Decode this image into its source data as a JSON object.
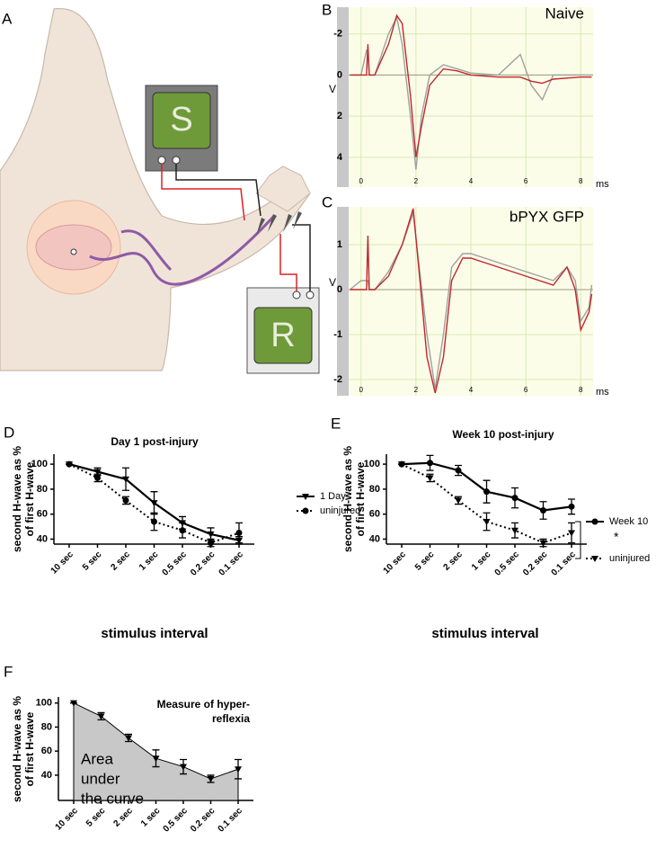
{
  "figure": {
    "panel_label": "A",
    "illustration": {
      "stimulator": "S",
      "recorder": "R"
    }
  },
  "chart_data": [
    {
      "type": "trace",
      "panel_label": "B",
      "title": "Naive",
      "ylabel": "V",
      "xlabel": "ms",
      "xlim": [
        -0.45,
        8.45
      ],
      "ylim": [
        5.45,
        -3.3
      ],
      "xticks": [
        0,
        2,
        4,
        6,
        8
      ],
      "yticks": [
        -2,
        0,
        2,
        4
      ],
      "grid": true,
      "series": [
        {
          "color": "#a0a0a0",
          "x": [
            -0.4,
            0,
            0.2,
            0.25,
            0.3,
            0.5,
            1,
            1.3,
            1.5,
            1.8,
            2,
            2.2,
            2.5,
            3,
            3.5,
            4,
            5,
            5.8,
            6.2,
            6.6,
            7,
            8,
            8.4
          ],
          "values": [
            0,
            0,
            -1.2,
            -1.2,
            0,
            0,
            -2,
            -2.8,
            -1.5,
            2,
            4.6,
            2,
            0,
            -0.5,
            -0.3,
            -0.1,
            0,
            -1,
            0.5,
            1.2,
            0,
            0,
            0
          ]
        },
        {
          "color": "#c0282d",
          "x": [
            -0.4,
            0,
            0.2,
            0.25,
            0.3,
            0.5,
            1,
            1.3,
            1.5,
            1.8,
            2,
            2.2,
            2.5,
            3,
            3.5,
            4,
            5,
            5.8,
            6.2,
            6.6,
            7,
            8,
            8.4
          ],
          "values": [
            0,
            0,
            0,
            -1.5,
            0,
            0,
            -1.5,
            -2.9,
            -2.5,
            1,
            4,
            2.5,
            0.5,
            -0.3,
            -0.2,
            0,
            0.1,
            0.1,
            0.3,
            0.4,
            0.2,
            0.1,
            0.1
          ]
        }
      ]
    },
    {
      "type": "trace",
      "panel_label": "C",
      "title": "bPYX GFP",
      "ylabel": "V",
      "xlabel": "ms",
      "xlim": [
        -0.45,
        8.45
      ],
      "ylim": [
        -2.36,
        1.84
      ],
      "xticks": [
        0,
        2,
        4,
        6,
        8
      ],
      "yticks": [
        -2,
        -1,
        0,
        1
      ],
      "grid": true,
      "series": [
        {
          "color": "#a0a0a0",
          "x": [
            -0.4,
            0,
            0.2,
            0.25,
            0.3,
            0.5,
            1,
            1.5,
            1.9,
            2.1,
            2.4,
            2.7,
            3,
            3.3,
            3.7,
            4,
            5,
            6,
            7,
            7.5,
            7.8,
            8,
            8.3,
            8.4
          ],
          "values": [
            0,
            0.2,
            0.2,
            0.2,
            0,
            0,
            0.4,
            1.0,
            1.7,
            0.6,
            -1.0,
            -2.2,
            -1.0,
            0.5,
            0.8,
            0.8,
            0.6,
            0.4,
            0.2,
            0.5,
            0.2,
            -0.7,
            -0.4,
            0.1
          ]
        },
        {
          "color": "#c0282d",
          "x": [
            -0.4,
            0,
            0.2,
            0.25,
            0.3,
            0.5,
            1,
            1.5,
            1.9,
            2.1,
            2.4,
            2.7,
            3,
            3.3,
            3.7,
            4,
            5,
            6,
            7,
            7.5,
            7.8,
            8,
            8.3,
            8.4
          ],
          "values": [
            0,
            0,
            0,
            1.2,
            0,
            0,
            0.3,
            1.0,
            1.8,
            0.5,
            -1.5,
            -2.3,
            -1.5,
            0.2,
            0.7,
            0.7,
            0.5,
            0.3,
            0.1,
            0.5,
            0,
            -0.9,
            -0.5,
            -0.1
          ]
        }
      ]
    },
    {
      "type": "line",
      "panel_label": "D",
      "title": "Day 1  post-injury",
      "ylabel": [
        "second H-wave as %",
        "of first H-wave"
      ],
      "xlabel": "stimulus interval",
      "categories": [
        "10 sec",
        "5 sec",
        "2 sec",
        "1 sec",
        "0.5 sec",
        "0.2 sec",
        "0.1 sec"
      ],
      "ylim": [
        36,
        108
      ],
      "yticks": [
        40,
        60,
        80,
        100
      ],
      "series": [
        {
          "name": "1 Day",
          "color": "#000000",
          "marker": "triangle",
          "dashed": false,
          "values": [
            100,
            94,
            88,
            69,
            53,
            44,
            39
          ],
          "errors": [
            0,
            3,
            9,
            9,
            5,
            5,
            3
          ]
        },
        {
          "name": "uninjured",
          "color": "#000000",
          "marker": "circle",
          "dashed": true,
          "values": [
            100,
            89,
            71,
            54,
            47,
            37,
            45
          ],
          "errors": [
            0,
            3,
            3,
            7,
            6,
            3,
            8
          ]
        }
      ]
    },
    {
      "type": "line",
      "panel_label": "E",
      "title": "Week 10 post-injury",
      "ylabel": [
        "second H-wave as %",
        "of first H-wave"
      ],
      "xlabel": "stimulus interval",
      "annotation": "*",
      "categories": [
        "10 sec",
        "5 sec",
        "2 sec",
        "1 sec",
        "0.5 sec",
        "0.2 sec",
        "0.1 sec"
      ],
      "ylim": [
        36,
        108
      ],
      "yticks": [
        40,
        60,
        80,
        100
      ],
      "series": [
        {
          "name": "Week 10",
          "color": "#000000",
          "marker": "circle",
          "dashed": false,
          "values": [
            100,
            101,
            95,
            78,
            73,
            63,
            66
          ],
          "errors": [
            0,
            6,
            4,
            9,
            8,
            7,
            6
          ]
        },
        {
          "name": "uninjured",
          "color": "#000000",
          "marker": "triangle",
          "dashed": true,
          "values": [
            100,
            89,
            71,
            54,
            47,
            37,
            45
          ],
          "errors": [
            0,
            3,
            3,
            7,
            6,
            3,
            8
          ]
        }
      ]
    },
    {
      "type": "area",
      "panel_label": "F",
      "title": [
        "Measure of hyper-",
        "reflexia"
      ],
      "ylabel": [
        "second H-wave as %",
        "of first H-wave"
      ],
      "annotation": [
        "Area",
        "under",
        "the curve"
      ],
      "categories": [
        "10 sec",
        "5 sec",
        "2 sec",
        "1 sec",
        "0.5 sec",
        "0.2 sec",
        "0.1 sec"
      ],
      "ylim": [
        19,
        105
      ],
      "yticks": [
        40,
        60,
        80,
        100
      ],
      "series": [
        {
          "color": "#c8c8c8",
          "marker": "triangle",
          "dashed": false,
          "values": [
            100,
            89,
            71,
            54,
            47,
            37,
            45
          ],
          "errors": [
            0,
            3,
            3,
            7,
            6,
            3,
            8
          ]
        }
      ]
    }
  ]
}
